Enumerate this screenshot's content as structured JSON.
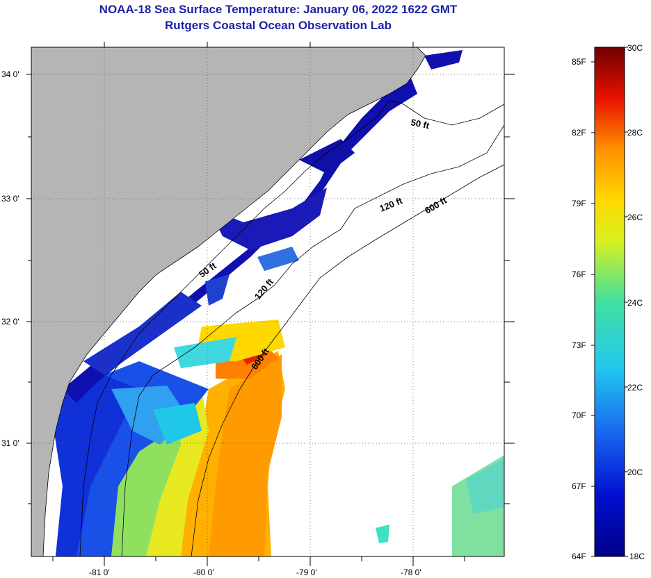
{
  "title_line1": "NOAA-18 Sea Surface Temperature:  January 06, 2022 1622 GMT",
  "title_line2": "Rutgers Coastal Ocean Observation Lab",
  "map": {
    "lat_labels": [
      {
        "value": 34,
        "text": "34 0'"
      },
      {
        "value": 33,
        "text": "33 0'"
      },
      {
        "value": 32,
        "text": "32 0'"
      },
      {
        "value": 31,
        "text": "31 0'"
      }
    ],
    "lon_labels": [
      {
        "value": -81,
        "text": "-81 0'"
      },
      {
        "value": -80,
        "text": "-80 0'"
      },
      {
        "value": -79,
        "text": "-79 0'"
      },
      {
        "value": -78,
        "text": "-78 0'"
      }
    ],
    "depth_labels": [
      "50 ft",
      "120 ft",
      "600 ft",
      "50 ft",
      "120 ft",
      "600 ft"
    ],
    "colors": {
      "land": "#b5b5b5",
      "water_nodata": "#ffffff"
    }
  },
  "colorbar": {
    "min_c": 18,
    "max_c": 30,
    "fahrenheit_labels": [
      {
        "value": 85,
        "text": "85F"
      },
      {
        "value": 82,
        "text": "82F"
      },
      {
        "value": 79,
        "text": "79F"
      },
      {
        "value": 76,
        "text": "76F"
      },
      {
        "value": 73,
        "text": "73F"
      },
      {
        "value": 70,
        "text": "70F"
      },
      {
        "value": 67,
        "text": "67F"
      },
      {
        "value": 64,
        "text": "64F"
      }
    ],
    "celsius_labels": [
      {
        "value": 30,
        "text": "30C"
      },
      {
        "value": 28,
        "text": "28C"
      },
      {
        "value": 26,
        "text": "26C"
      },
      {
        "value": 24,
        "text": "24C"
      },
      {
        "value": 22,
        "text": "22C"
      },
      {
        "value": 20,
        "text": "20C"
      },
      {
        "value": 18,
        "text": "18C"
      }
    ]
  }
}
